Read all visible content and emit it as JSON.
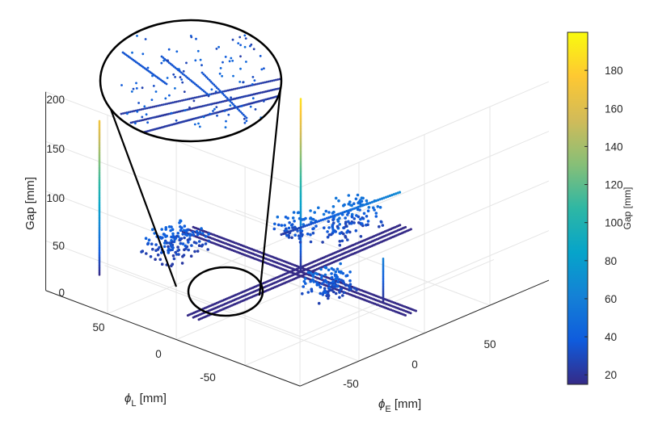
{
  "chart_data": {
    "type": "scatter",
    "view": "3d",
    "zlabel": "Gap [mm]",
    "xlabel": "ϕ_E [mm]",
    "ylabel": "ϕ_L [mm]",
    "x_ticks": [
      "-50",
      "0",
      "50"
    ],
    "y_ticks": [
      "50",
      "0",
      "-50"
    ],
    "z_ticks": [
      "0",
      "50",
      "100",
      "150",
      "200"
    ],
    "colorbar": {
      "label": "Gap [mm]",
      "range": [
        15,
        200
      ],
      "ticks": [
        "20",
        "40",
        "60",
        "80",
        "100",
        "120",
        "140",
        "160",
        "180"
      ],
      "colormap": "parula",
      "colors": [
        "#352a87",
        "#0f5cdd",
        "#1481d6",
        "#06a4ca",
        "#2eb7a4",
        "#87bf77",
        "#d1bb59",
        "#fec832",
        "#f9fb0e"
      ]
    },
    "grid": true,
    "inset": "magnified view",
    "structures": [
      {
        "name": "track-E",
        "type": "rails",
        "x_range": [
          -80,
          80
        ],
        "y": [
          -4,
          0,
          4
        ],
        "gap": 15
      },
      {
        "name": "track-L",
        "type": "rails",
        "y_range": [
          -80,
          80
        ],
        "x": [
          -4,
          0,
          4
        ],
        "gap": 15
      },
      {
        "name": "gap-column-center",
        "type": "vertical",
        "x": 0,
        "y": 0,
        "z_range": [
          15,
          190
        ]
      },
      {
        "name": "gap-column-left",
        "type": "vertical",
        "x": -75,
        "y": 75,
        "z_range": [
          15,
          170
        ]
      },
      {
        "name": "gap-column-back",
        "type": "vertical",
        "x": 0,
        "y": -60,
        "z_range": [
          15,
          60
        ]
      }
    ]
  }
}
